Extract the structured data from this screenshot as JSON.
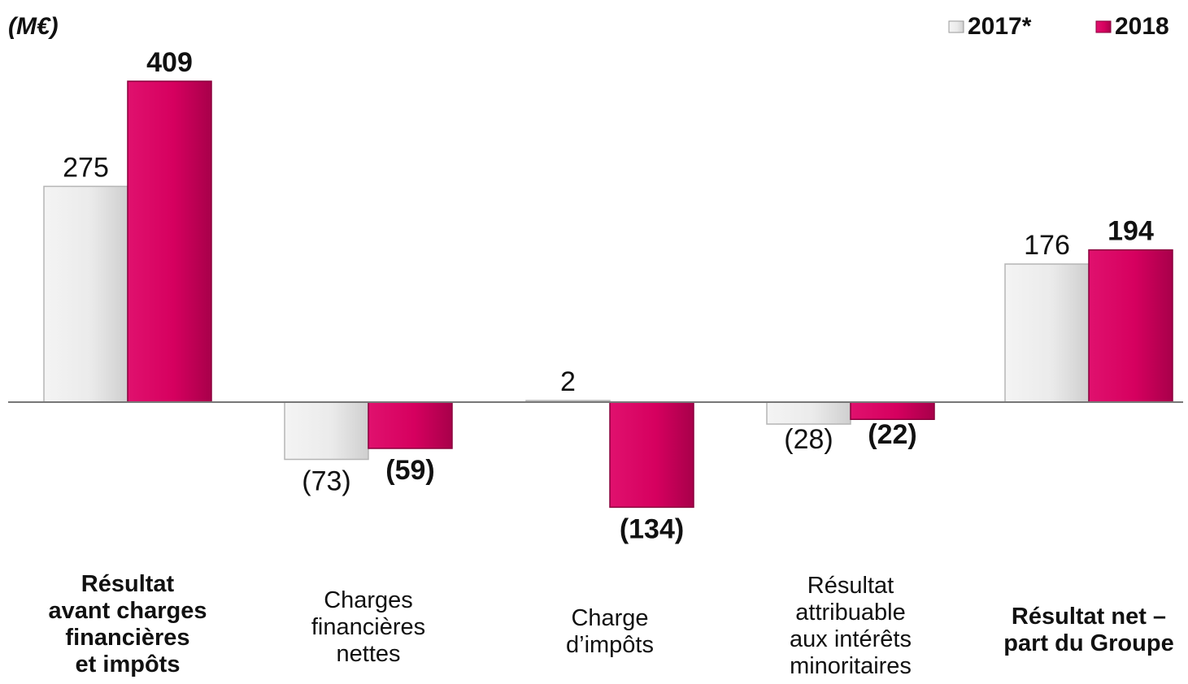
{
  "chart_data": {
    "type": "bar",
    "unit_label": "(M€)",
    "categories": [
      [
        "Résultat",
        "avant charges",
        "financières",
        "et impôts"
      ],
      [
        "Charges",
        "financières",
        "nettes"
      ],
      [
        "Charge",
        "d’impôts"
      ],
      [
        "Résultat",
        "attribuable",
        "aux intérêts",
        "minoritaires"
      ],
      [
        "Résultat net –",
        "part du Groupe"
      ]
    ],
    "category_bold": [
      true,
      false,
      false,
      false,
      true
    ],
    "series": [
      {
        "name": "2017*",
        "values": [
          275,
          -73,
          2,
          -28,
          176
        ],
        "labels": [
          "275",
          "(73)",
          "2",
          "(28)",
          "176"
        ],
        "color": "#e6e6e6",
        "bold": false
      },
      {
        "name": "2018",
        "values": [
          409,
          -59,
          -134,
          -22,
          194
        ],
        "labels": [
          "409",
          "(59)",
          "(134)",
          "(22)",
          "194"
        ],
        "color": "#d6005f",
        "bold": true
      }
    ],
    "legend_position": "top-right",
    "grid": false
  }
}
